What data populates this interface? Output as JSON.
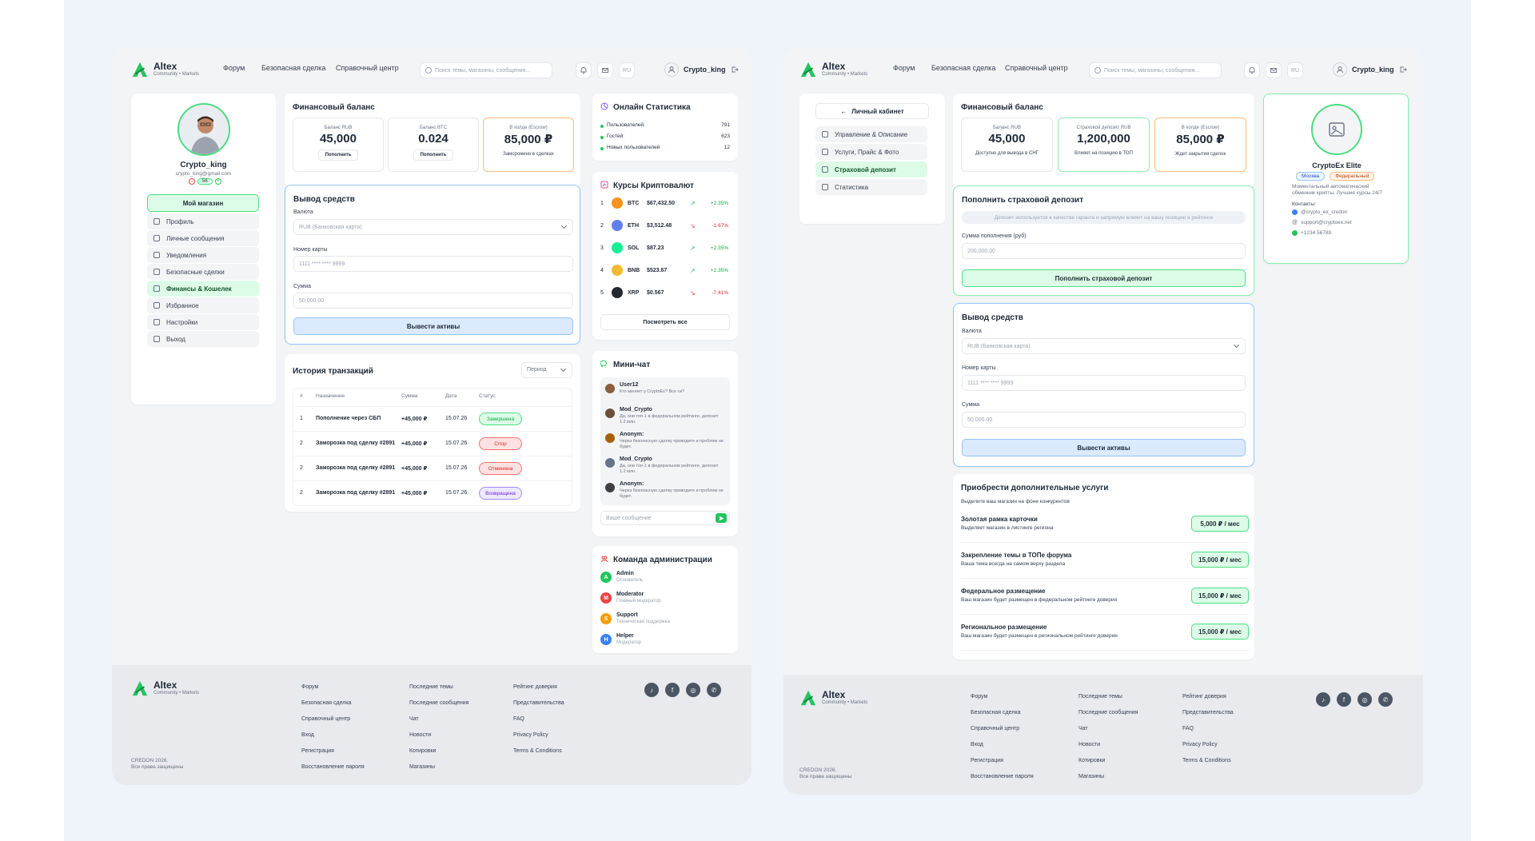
{
  "brand": {
    "name": "Altex",
    "tagline": "Community • Markets",
    "color": "#22c55e"
  },
  "header": {
    "nav": [
      "Форум",
      "Безопасная сделка",
      "Справочный центр"
    ],
    "search_placeholder": "Поиск темы, магазины, сообщения...",
    "lang": "RU",
    "username": "Crypto_king"
  },
  "profile": {
    "name": "Crypto_king",
    "email": "crypto_king@gmail.com",
    "rating": "56",
    "shop_button": "Мой магазин",
    "menu": [
      "Профиль",
      "Личные сообщения",
      "Уведомления",
      "Безопасные сделки",
      "Финансы & Кошелек",
      "Избранное",
      "Настройки",
      "Выход"
    ],
    "active_index": 4
  },
  "finance": {
    "title": "Финансовый баланс",
    "rub_label": "Баланс RUB",
    "rub_value": "45,000",
    "rub_button": "Пополнить",
    "btc_label": "Баланс BTC",
    "btc_value": "0.024",
    "btc_button": "Пополнить",
    "escrow_label": "В холде (Escrow)",
    "escrow_value": "85,000 ₽",
    "escrow_sub": "Заморожено в сделках"
  },
  "withdraw": {
    "title": "Вывод средств",
    "currency_label": "Валюта",
    "currency_value": "RUB (Банковская карта)",
    "card_label": "Номер карты",
    "card_placeholder": "1111 **** **** 9999",
    "sum_label": "Сумма",
    "sum_placeholder": "50,000.00",
    "button": "Вывести активы"
  },
  "transactions": {
    "title": "История транзакций",
    "period": "Период",
    "columns": [
      "#",
      "Назначение",
      "Сумма",
      "Дата",
      "Статус"
    ],
    "rows": [
      {
        "n": "1",
        "purpose": "Пополнение через СБП",
        "sum": "+45,000 ₽",
        "date": "15.07.26",
        "status": "Завершена",
        "kind": "green"
      },
      {
        "n": "2",
        "purpose": "Заморозка под сделку #2891",
        "sum": "+45,000 ₽",
        "date": "15.07.26",
        "status": "Спор",
        "kind": "red"
      },
      {
        "n": "2",
        "purpose": "Заморозка под сделку #2891",
        "sum": "+45,000 ₽",
        "date": "15.07.26",
        "status": "Отменена",
        "kind": "red"
      },
      {
        "n": "2",
        "purpose": "Заморозка под сделку #2891",
        "sum": "+45,000 ₽",
        "date": "15.07.26",
        "status": "Возвращена",
        "kind": "purple"
      }
    ]
  },
  "stats": {
    "title": "Онлайн Статистика",
    "rows": [
      {
        "label": "Пользователей:",
        "value": "791"
      },
      {
        "label": "Гостей:",
        "value": "623"
      },
      {
        "label": "Новых пользователей",
        "value": "12"
      }
    ]
  },
  "crypto": {
    "title": "Курсы Криптовалют",
    "rows": [
      {
        "n": "1",
        "sym": "BTC",
        "price": "$67,432.50",
        "change": "+2.35%",
        "up": true,
        "color": "#f7931a"
      },
      {
        "n": "2",
        "sym": "ETH",
        "price": "$3,512.48",
        "change": "-1.67%",
        "up": false,
        "color": "#627eea"
      },
      {
        "n": "3",
        "sym": "SOL",
        "price": "$87.23",
        "change": "+2.35%",
        "up": true,
        "color": "#14f195"
      },
      {
        "n": "4",
        "sym": "BNB",
        "price": "$523.67",
        "change": "+2.35%",
        "up": true,
        "color": "#f3ba2f"
      },
      {
        "n": "5",
        "sym": "XRP",
        "price": "$0.567",
        "change": "-7.41%",
        "up": false,
        "color": "#23292f"
      }
    ],
    "button": "Посмотреть все"
  },
  "chat": {
    "title": "Мини-чат",
    "messages": [
      {
        "name": "User12",
        "text": "Кто меняет у CryptoEx? Все ок?",
        "color": "#8b5e3c"
      },
      {
        "name": "Mod_Crypto",
        "text": "Да, они топ-1 в федеральном рейтинге, депозит 1.2 млн.",
        "color": "#6b4f3a"
      },
      {
        "name": "Anonym:",
        "text": "Через безопасную сделку проводите и проблем не будет.",
        "color": "#a16207"
      },
      {
        "name": "Mod_Crypto",
        "text": "Да, они топ-1 в федеральном рейтинге, депозит 1.2 млн.",
        "color": "#64748b"
      },
      {
        "name": "Anonym:",
        "text": "Через безопасную сделку проводите и проблем не будет.",
        "color": "#3f3f46"
      }
    ],
    "placeholder": "Ваше сообщение"
  },
  "admins": {
    "title": "Команда администрации",
    "rows": [
      {
        "name": "Admin",
        "role": "Основатель",
        "letter": "A",
        "color": "#22c55e"
      },
      {
        "name": "Moderator",
        "role": "Главный модератор",
        "letter": "M",
        "color": "#ef4444"
      },
      {
        "name": "Support",
        "role": "Техническая поддержка",
        "letter": "S",
        "color": "#f59e0b"
      },
      {
        "name": "Helper",
        "role": "Модератор",
        "letter": "H",
        "color": "#3b82f6"
      }
    ]
  },
  "footer": {
    "col1": [
      "Форум",
      "Безопасная сделка",
      "Справочный центр",
      "Вход",
      "Регистрация",
      "Восстановление пароля"
    ],
    "col2": [
      "Последние темы",
      "Последние сообщения",
      "Чат",
      "Новости",
      "Котировки",
      "Магазины"
    ],
    "col3": [
      "Рейтинг доверия",
      "Представительства",
      "FAQ",
      "Privacy Policy",
      "Terms & Conditions"
    ],
    "copy1": "CREDON 2026.",
    "copy2": "Все права защищены",
    "social": [
      "tiktok-icon",
      "facebook-icon",
      "instagram-icon",
      "whatsapp-icon"
    ]
  },
  "cabinet": {
    "back": "Личный кабинет",
    "menu": [
      "Управление & Описание",
      "Услуги, Прайс & Фото",
      "Страховой депозит",
      "Статистика"
    ],
    "active_index": 2
  },
  "finance2": {
    "title": "Финансовый баланс",
    "rub_label": "Баланс RUB",
    "rub_value": "45,000",
    "rub_sub": "Доступно для вывода в СНГ",
    "dep_label": "Страховой депозит RUB",
    "dep_value": "1,200,000",
    "dep_sub": "Влияет на позицию в ТОП",
    "escrow_label": "В холде (Escrow)",
    "escrow_value": "85,000 ₽",
    "escrow_sub": "Ждет закрытия сделок"
  },
  "deposit": {
    "title": "Пополнить страховой депозит",
    "info": "Депозит используется в качестве гаранта и напрямую влияет на вашу позицию в рейтинге",
    "sum_label": "Сумма пополнения (руб)",
    "sum_placeholder": "200,000.00",
    "button": "Пополнить страховой депозит"
  },
  "services": {
    "title": "Приобрести дополнительные услуги",
    "subtitle": "Выделите ваш магазин на фоне конкурентов",
    "rows": [
      {
        "name": "Золотая рамка карточки",
        "desc": "Выделяет магазин в листинге региона",
        "price": "5,000 ₽ / мес"
      },
      {
        "name": "Закрепление темы в ТОПе форума",
        "desc": "Ваша тема всегда на самом верху раздела",
        "price": "15,000 ₽ / мес"
      },
      {
        "name": "Федеральное размещение",
        "desc": "Ваш магазин будет размещен в федеральном рейтинге доверия",
        "price": "15,000 ₽ / мес"
      },
      {
        "name": "Региональное размещение",
        "desc": "Ваш магазин будет размещен в региональном рейтинге доверия",
        "price": "15,000 ₽ / мес"
      }
    ]
  },
  "shop": {
    "name": "CryptoEx Elite",
    "tag_city": "Москва",
    "tag_fed": "Федеральный",
    "desc": "Моментальный автоматический обменник крипты. Лучшие курсы 24/7",
    "contacts_label": "Контакты:",
    "telegram": "@crypto_ex_credon",
    "email": "support@cryptoex.net",
    "phone": "+1234 56789"
  }
}
